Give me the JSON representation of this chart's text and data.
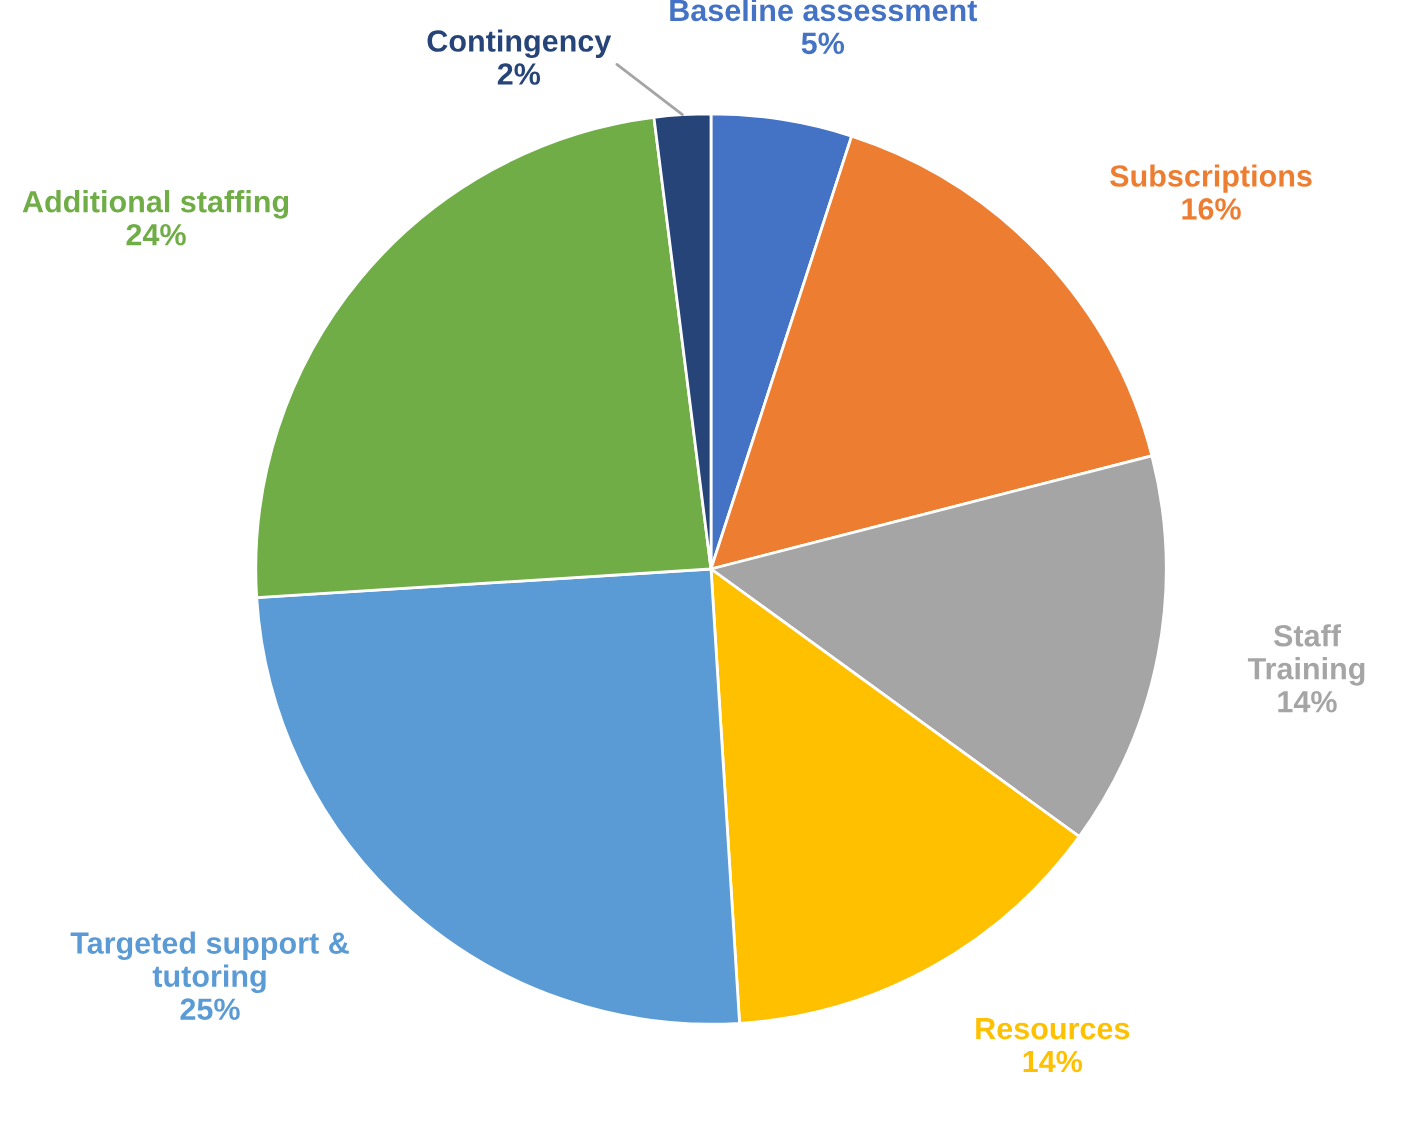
{
  "chart_data": {
    "type": "pie",
    "categories": [
      "Baseline assessment",
      "Subscriptions",
      "Staff Training",
      "Resources",
      "Targeted support & tutoring",
      "Additional staffing",
      "Contingency"
    ],
    "values": [
      5,
      16,
      14,
      14,
      25,
      24,
      2
    ],
    "value_labels": [
      "5%",
      "16%",
      "14%",
      "14%",
      "25%",
      "24%",
      "2%"
    ],
    "colors": [
      "#4472c4",
      "#ed7d31",
      "#a5a5a5",
      "#ffc000",
      "#5b9bd5",
      "#70ad47",
      "#264478"
    ],
    "legend": false
  }
}
